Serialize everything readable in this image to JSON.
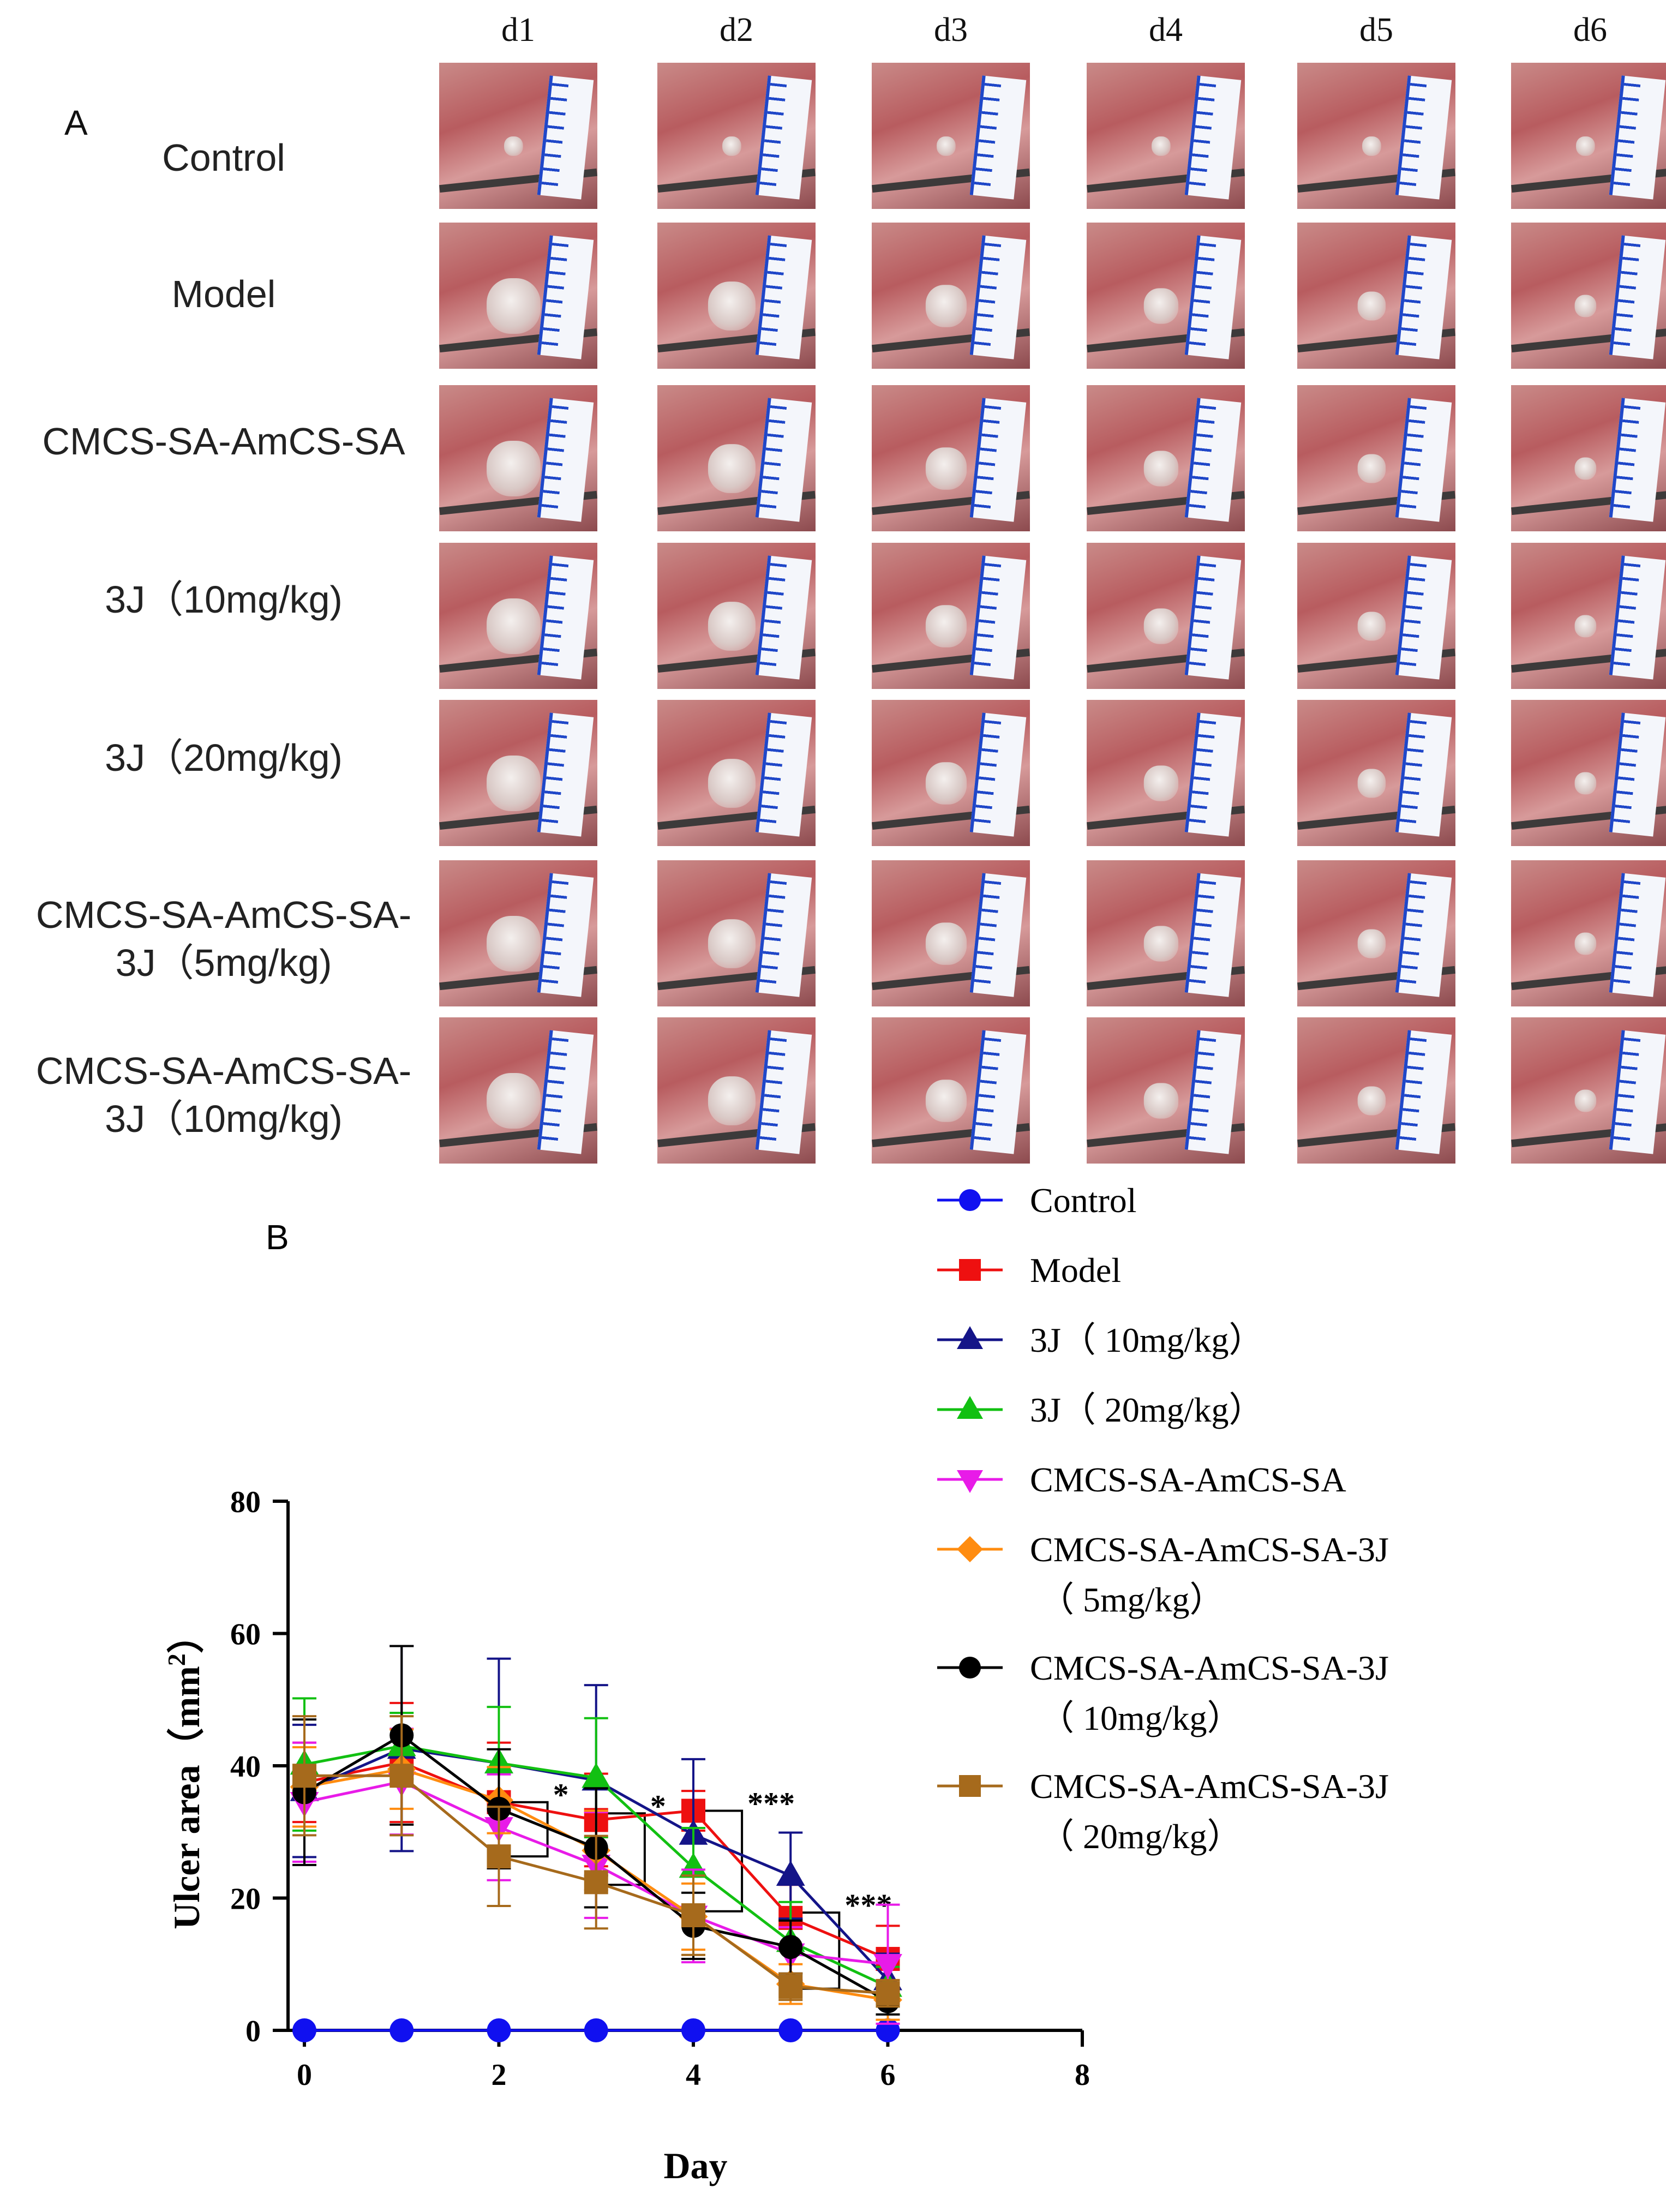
{
  "panel_a": {
    "letter": "A",
    "days": [
      "d1",
      "d2",
      "d3",
      "d4",
      "d5",
      "d6"
    ],
    "rows": [
      {
        "lines": [
          "Control"
        ]
      },
      {
        "lines": [
          "Model"
        ]
      },
      {
        "lines": [
          "CMCS-SA-AmCS-SA"
        ]
      },
      {
        "lines": [
          "3J（10mg/kg)"
        ]
      },
      {
        "lines": [
          "3J（20mg/kg)"
        ]
      },
      {
        "lines": [
          "CMCS-SA-AmCS-SA-",
          "3J（5mg/kg)"
        ]
      },
      {
        "lines": [
          "CMCS-SA-AmCS-SA-",
          "3J（10mg/kg)"
        ]
      }
    ]
  },
  "panel_b": {
    "letter": "B"
  },
  "chart_data": {
    "type": "line",
    "xlabel": "Day",
    "ylabel": "Ulcer area（mm",
    "ylabel_sup": "2",
    "ylabel_close": "）",
    "xlim": [
      0,
      8
    ],
    "ylim": [
      0,
      80
    ],
    "xticks": [
      0,
      2,
      4,
      6,
      8
    ],
    "yticks": [
      0,
      20,
      40,
      60,
      80
    ],
    "x": [
      0,
      1,
      2,
      3,
      4,
      5,
      6
    ],
    "series": [
      {
        "name": "Control",
        "legend": [
          "Control"
        ],
        "color": "#1010f0",
        "marker": "circle",
        "values": [
          0,
          0,
          0,
          0,
          0,
          0,
          0
        ],
        "err": [
          0,
          0,
          0,
          0,
          0,
          0,
          0
        ]
      },
      {
        "name": "Model",
        "legend": [
          "Model"
        ],
        "color": "#ee1010",
        "marker": "square",
        "values": [
          37.5,
          40.5,
          34.5,
          31.8,
          33.2,
          17.0,
          10.8
        ],
        "err": [
          6,
          9,
          9,
          7,
          3,
          5,
          5
        ]
      },
      {
        "name": "3J(10mg/kg)",
        "legend": [
          "3J（ 10mg/kg）"
        ],
        "color": "#141488",
        "marker": "triangle-up",
        "values": [
          36.2,
          42.6,
          40.4,
          37.8,
          29.6,
          23.4,
          7.6
        ],
        "err": [
          10,
          15.5,
          15.8,
          14.4,
          11.4,
          6.5,
          4
        ]
      },
      {
        "name": "3J(20mg/kg)",
        "legend": [
          "3J（ 20mg/kg）"
        ],
        "color": "#12c012",
        "marker": "triangle-up",
        "values": [
          40.2,
          43.0,
          40.4,
          38.2,
          24.6,
          13.4,
          6.6
        ],
        "err": [
          10,
          5,
          8.5,
          9,
          6,
          6,
          3
        ]
      },
      {
        "name": "CMCS-SA-AmCS-SA",
        "legend": [
          "CMCS-SA-AmCS-SA"
        ],
        "color": "#e81be8",
        "marker": "triangle-down",
        "values": [
          34.5,
          37.6,
          30.7,
          25.0,
          17.3,
          11.6,
          10.0
        ],
        "err": [
          9,
          8,
          8,
          8,
          7,
          4,
          9
        ]
      },
      {
        "name": "CMCS-SA-AmCS-SA-3J(5mg/kg)",
        "legend": [
          "CMCS-SA-AmCS-SA-3J",
          "（ 5mg/kg）"
        ],
        "color": "#ff8c10",
        "marker": "diamond",
        "values": [
          36.8,
          39.5,
          34.8,
          27.2,
          17.2,
          7.0,
          4.6
        ],
        "err": [
          6,
          6,
          5,
          6,
          5,
          3,
          3
        ]
      },
      {
        "name": "CMCS-SA-AmCS-SA-3J(10mg/kg)",
        "legend": [
          "CMCS-SA-AmCS-SA-3J",
          "（ 10mg/kg）"
        ],
        "color": "#000000",
        "marker": "circle",
        "values": [
          36.0,
          44.6,
          33.5,
          27.6,
          15.8,
          12.6,
          4.4
        ],
        "err": [
          11,
          13.5,
          9,
          9,
          5,
          4,
          2
        ]
      },
      {
        "name": "CMCS-SA-AmCS-SA-3J(20mg/kg)",
        "legend": [
          "CMCS-SA-AmCS-SA-3J",
          "（ 20mg/kg）"
        ],
        "color": "#a66a1c",
        "marker": "square",
        "values": [
          38.5,
          38.5,
          26.3,
          22.4,
          17.4,
          6.6,
          5.6
        ],
        "err": [
          9,
          9,
          7.5,
          7,
          6,
          2,
          2
        ]
      }
    ],
    "significance": [
      {
        "day": 2,
        "top": 34.5,
        "bottom": 26.3,
        "label": "*"
      },
      {
        "day": 3,
        "top": 32.8,
        "bottom": 22.0,
        "label": "*"
      },
      {
        "day": 4,
        "top": 33.2,
        "bottom": 18.0,
        "label": "***"
      },
      {
        "day": 5,
        "top": 17.8,
        "bottom": 6.3,
        "label": "***"
      }
    ]
  }
}
